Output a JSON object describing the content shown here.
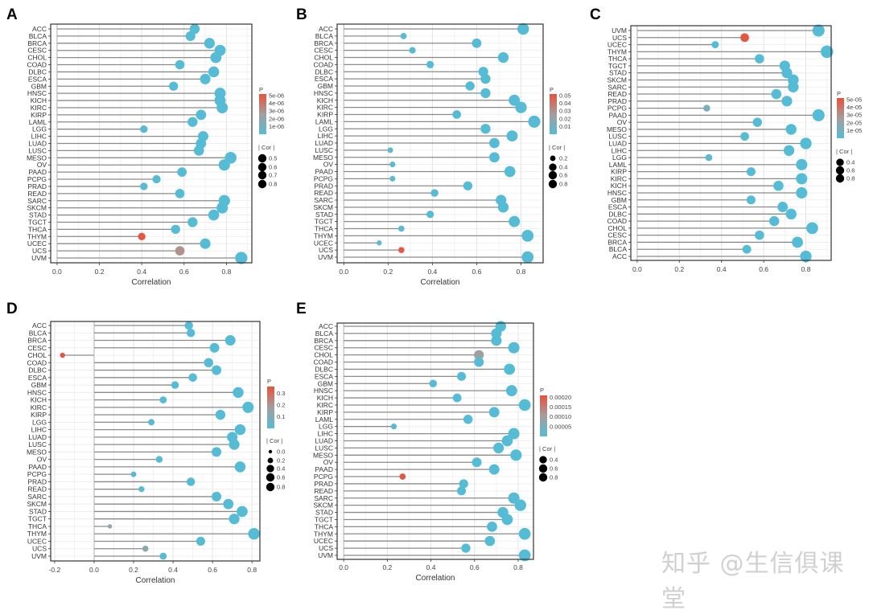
{
  "watermark": "知乎 @生信俱课堂",
  "colors": {
    "low": "#56bcd5",
    "mid": "#a39e9e",
    "high": "#e8523a",
    "stem": "#8a8a8a"
  },
  "chart_data": [
    {
      "panel": "A",
      "type": "lollipop",
      "xlabel": "Correlation",
      "xlim": [
        -0.03,
        0.92
      ],
      "xticks": [
        0,
        0.2,
        0.4,
        0.6,
        0.8
      ],
      "xtick_labels": [
        "0.0",
        "0.2",
        "0.4",
        "0.6",
        "0.8"
      ],
      "categories": [
        "ACC",
        "BLCA",
        "BRCA",
        "CESC",
        "CHOL",
        "COAD",
        "DLBC",
        "ESCA",
        "GBM",
        "HNSC",
        "KICH",
        "KIRC",
        "KIRP",
        "LAML",
        "LGG",
        "LIHC",
        "LUAD",
        "LUSC",
        "MESO",
        "OV",
        "PAAD",
        "PCPG",
        "PRAD",
        "READ",
        "SARC",
        "SKCM",
        "STAD",
        "TGCT",
        "THCA",
        "THYM",
        "UCEC",
        "UCS",
        "UVM"
      ],
      "values": [
        0.65,
        0.63,
        0.72,
        0.77,
        0.75,
        0.58,
        0.74,
        0.7,
        0.55,
        0.77,
        0.77,
        0.78,
        0.68,
        0.64,
        0.41,
        0.69,
        0.68,
        0.67,
        0.82,
        0.79,
        0.59,
        0.47,
        0.41,
        0.58,
        0.79,
        0.78,
        0.74,
        0.64,
        0.56,
        0.4,
        0.7,
        0.58,
        0.87
      ],
      "p": [
        0,
        0,
        0,
        0,
        0,
        0,
        0,
        0,
        0,
        0,
        0,
        0,
        0,
        0,
        1e-07,
        0,
        0,
        0,
        0,
        0,
        0,
        0,
        1e-07,
        0,
        0,
        0,
        0,
        0,
        0,
        5e-06,
        0,
        3e-06,
        0
      ],
      "legend": {
        "p_title": "P",
        "p_range": [
          0,
          5.2e-06
        ],
        "p_ticks": [
          5e-06,
          4e-06,
          3e-06,
          2e-06,
          1e-06
        ],
        "p_tick_labels": [
          "5e-06",
          "4e-06",
          "3e-06",
          "2e-06",
          "1e-06"
        ],
        "size_title": "| Cor |",
        "size_values": [
          0.5,
          0.6,
          0.7,
          0.8
        ],
        "size_labels": [
          "0.5",
          "0.6",
          "0.7",
          "0.8"
        ]
      }
    },
    {
      "panel": "B",
      "type": "lollipop",
      "xlabel": "Correlation",
      "xlim": [
        -0.03,
        0.9
      ],
      "xticks": [
        0,
        0.2,
        0.4,
        0.6,
        0.8
      ],
      "xtick_labels": [
        "0.0",
        "0.2",
        "0.4",
        "0.6",
        "0.8"
      ],
      "categories": [
        "ACC",
        "BLCA",
        "BRCA",
        "CESC",
        "CHOL",
        "COAD",
        "DLBC",
        "ESCA",
        "GBM",
        "HNSC",
        "KICH",
        "KIRC",
        "KIRP",
        "LAML",
        "LGG",
        "LIHC",
        "LUAD",
        "LUSC",
        "MESO",
        "OV",
        "PAAD",
        "PCPG",
        "PRAD",
        "READ",
        "SARC",
        "SKCM",
        "STAD",
        "TGCT",
        "THCA",
        "THYM",
        "UCEC",
        "UCS",
        "UVM"
      ],
      "values": [
        0.81,
        0.27,
        0.6,
        0.31,
        0.72,
        0.39,
        0.63,
        0.64,
        0.57,
        0.64,
        0.77,
        0.8,
        0.51,
        0.86,
        0.64,
        0.76,
        0.68,
        0.21,
        0.68,
        0.22,
        0.75,
        0.22,
        0.56,
        0.41,
        0.71,
        0.72,
        0.39,
        0.77,
        0.26,
        0.83,
        0.16,
        0.26,
        0.83
      ],
      "p": [
        0,
        0.001,
        0,
        0,
        0,
        0,
        0,
        0,
        0,
        0,
        0,
        0,
        0,
        0,
        0,
        0,
        0,
        0.003,
        0,
        0.002,
        0,
        0.003,
        0,
        0,
        0,
        0,
        0,
        0,
        0.001,
        0,
        0.003,
        0.05,
        0
      ],
      "legend": {
        "p_title": "P",
        "p_range": [
          0,
          0.052
        ],
        "p_ticks": [
          0.05,
          0.04,
          0.03,
          0.02,
          0.01
        ],
        "p_tick_labels": [
          "0.05",
          "0.04",
          "0.03",
          "0.02",
          "0.01"
        ],
        "size_title": "| Cor |",
        "size_values": [
          0.2,
          0.4,
          0.6,
          0.8
        ],
        "size_labels": [
          "0.2",
          "0.4",
          "0.6",
          "0.8"
        ]
      }
    },
    {
      "panel": "C",
      "type": "lollipop",
      "xlabel": "Correlation",
      "xlim": [
        -0.03,
        0.92
      ],
      "xticks": [
        0,
        0.2,
        0.4,
        0.6,
        0.8
      ],
      "xtick_labels": [
        "0.0",
        "0.2",
        "0.4",
        "0.6",
        "0.8"
      ],
      "categories": [
        "UVM",
        "UCS",
        "UCEC",
        "THYM",
        "THCA",
        "TGCT",
        "STAD",
        "SKCM",
        "SARC",
        "READ",
        "PRAD",
        "PCPG",
        "PAAD",
        "OV",
        "MESO",
        "LUSC",
        "LUAD",
        "LIHC",
        "LGG",
        "LAML",
        "KIRP",
        "KIRC",
        "KICH",
        "HNSC",
        "GBM",
        "ESCA",
        "DLBC",
        "COAD",
        "CHOL",
        "CESC",
        "BRCA",
        "BLCA",
        "ACC"
      ],
      "values": [
        0.86,
        0.51,
        0.37,
        0.9,
        0.58,
        0.7,
        0.71,
        0.74,
        0.74,
        0.66,
        0.71,
        0.33,
        0.86,
        0.57,
        0.73,
        0.51,
        0.8,
        0.72,
        0.34,
        0.78,
        0.54,
        0.78,
        0.67,
        0.78,
        0.54,
        0.69,
        0.73,
        0.65,
        0.83,
        0.58,
        0.76,
        0.52,
        0.8
      ],
      "p": [
        0,
        5e-05,
        0,
        0,
        0,
        0,
        0,
        0,
        0,
        0,
        0,
        1.2e-05,
        0,
        0,
        0,
        0,
        0,
        0,
        3e-06,
        0,
        0,
        0,
        0,
        0,
        0,
        0,
        0,
        0,
        0,
        0,
        0,
        0,
        0
      ],
      "legend": {
        "p_title": "P",
        "p_range": [
          0,
          5.2e-05
        ],
        "p_ticks": [
          5e-05,
          4e-05,
          3e-05,
          2e-05,
          1e-05
        ],
        "p_tick_labels": [
          "5e-05",
          "4e-05",
          "3e-05",
          "2e-05",
          "1e-05"
        ],
        "size_title": "| Cor |",
        "size_values": [
          0.4,
          0.6,
          0.8
        ],
        "size_labels": [
          "0.4",
          "0.6",
          "0.8"
        ]
      }
    },
    {
      "panel": "D",
      "type": "lollipop",
      "xlabel": "Correlation",
      "xlim": [
        -0.22,
        0.84
      ],
      "xticks": [
        -0.2,
        0,
        0.2,
        0.4,
        0.6,
        0.8
      ],
      "xtick_labels": [
        "-0.2",
        "0.0",
        "0.2",
        "0.4",
        "0.6",
        "0.8"
      ],
      "categories": [
        "ACC",
        "BLCA",
        "BRCA",
        "CESC",
        "CHOL",
        "COAD",
        "DLBC",
        "ESCA",
        "GBM",
        "HNSC",
        "KICH",
        "KIRC",
        "KIRP",
        "LGG",
        "LIHC",
        "LUAD",
        "LUSC",
        "MESO",
        "OV",
        "PAAD",
        "PCPG",
        "PRAD",
        "READ",
        "SARC",
        "SKCM",
        "STAD",
        "TGCT",
        "THCA",
        "THYM",
        "UCEC",
        "UCS",
        "UVM"
      ],
      "values": [
        0.48,
        0.49,
        0.69,
        0.61,
        -0.16,
        0.58,
        0.62,
        0.5,
        0.41,
        0.73,
        0.35,
        0.78,
        0.64,
        0.29,
        0.74,
        0.7,
        0.71,
        0.62,
        0.33,
        0.74,
        0.2,
        0.49,
        0.24,
        0.62,
        0.68,
        0.75,
        0.71,
        0.08,
        0.81,
        0.54,
        0.26,
        0.35
      ],
      "p": [
        0,
        0,
        0,
        0,
        0.35,
        0,
        0,
        0,
        0,
        0,
        0,
        0,
        0,
        0,
        0,
        0,
        0,
        0,
        0,
        0,
        0.01,
        0,
        0.005,
        0,
        0,
        0,
        0,
        0.13,
        0,
        0,
        0.12,
        0
      ],
      "legend": {
        "p_title": "P",
        "p_range": [
          0,
          0.36
        ],
        "p_ticks": [
          0.3,
          0.2,
          0.1
        ],
        "p_tick_labels": [
          "0.3",
          "0.2",
          "0.1"
        ],
        "size_title": "| Cor |",
        "size_values": [
          0.0,
          0.2,
          0.4,
          0.6,
          0.8
        ],
        "size_labels": [
          "0.0",
          "0.2",
          "0.4",
          "0.6",
          "0.8"
        ]
      }
    },
    {
      "panel": "E",
      "type": "lollipop",
      "xlabel": "Correlation",
      "xlim": [
        -0.03,
        0.87
      ],
      "xticks": [
        0,
        0.2,
        0.4,
        0.6,
        0.8
      ],
      "xtick_labels": [
        "0.0",
        "0.2",
        "0.4",
        "0.6",
        "0.8"
      ],
      "categories": [
        "ACC",
        "BLCA",
        "BRCA",
        "CESC",
        "CHOL",
        "COAD",
        "DLBC",
        "ESCA",
        "GBM",
        "HNSC",
        "KICH",
        "KIRC",
        "KIRP",
        "LAML",
        "LGG",
        "LIHC",
        "LUAD",
        "LUSC",
        "MESO",
        "OV",
        "PAAD",
        "PCPG",
        "PRAD",
        "READ",
        "SARC",
        "SKCM",
        "STAD",
        "TGCT",
        "THCA",
        "THYM",
        "UCEC",
        "UCS",
        "UVM"
      ],
      "values": [
        0.72,
        0.7,
        0.7,
        0.78,
        0.62,
        0.62,
        0.76,
        0.54,
        0.41,
        0.77,
        0.52,
        0.83,
        0.69,
        0.57,
        0.23,
        0.78,
        0.75,
        0.71,
        0.79,
        0.61,
        0.69,
        0.27,
        0.55,
        0.54,
        0.78,
        0.81,
        0.73,
        0.75,
        0.68,
        0.83,
        0.67,
        0.56,
        0.83
      ],
      "p": [
        0,
        0,
        0,
        0,
        0.0001,
        0,
        0,
        0,
        0,
        0,
        0,
        0,
        0,
        0,
        1e-05,
        0,
        0,
        0,
        0,
        0,
        0,
        0.0002,
        0,
        0,
        0,
        0,
        0,
        0,
        0,
        0,
        0,
        0,
        0
      ],
      "legend": {
        "p_title": "P",
        "p_range": [
          0,
          0.00021
        ],
        "p_ticks": [
          0.0002,
          0.00015,
          0.0001,
          5e-05
        ],
        "p_tick_labels": [
          "0.00020",
          "0.00015",
          "0.00010",
          "0.00005"
        ],
        "size_title": "| Cor |",
        "size_values": [
          0.4,
          0.6,
          0.8
        ],
        "size_labels": [
          "0.4",
          "0.6",
          "0.8"
        ]
      }
    }
  ]
}
